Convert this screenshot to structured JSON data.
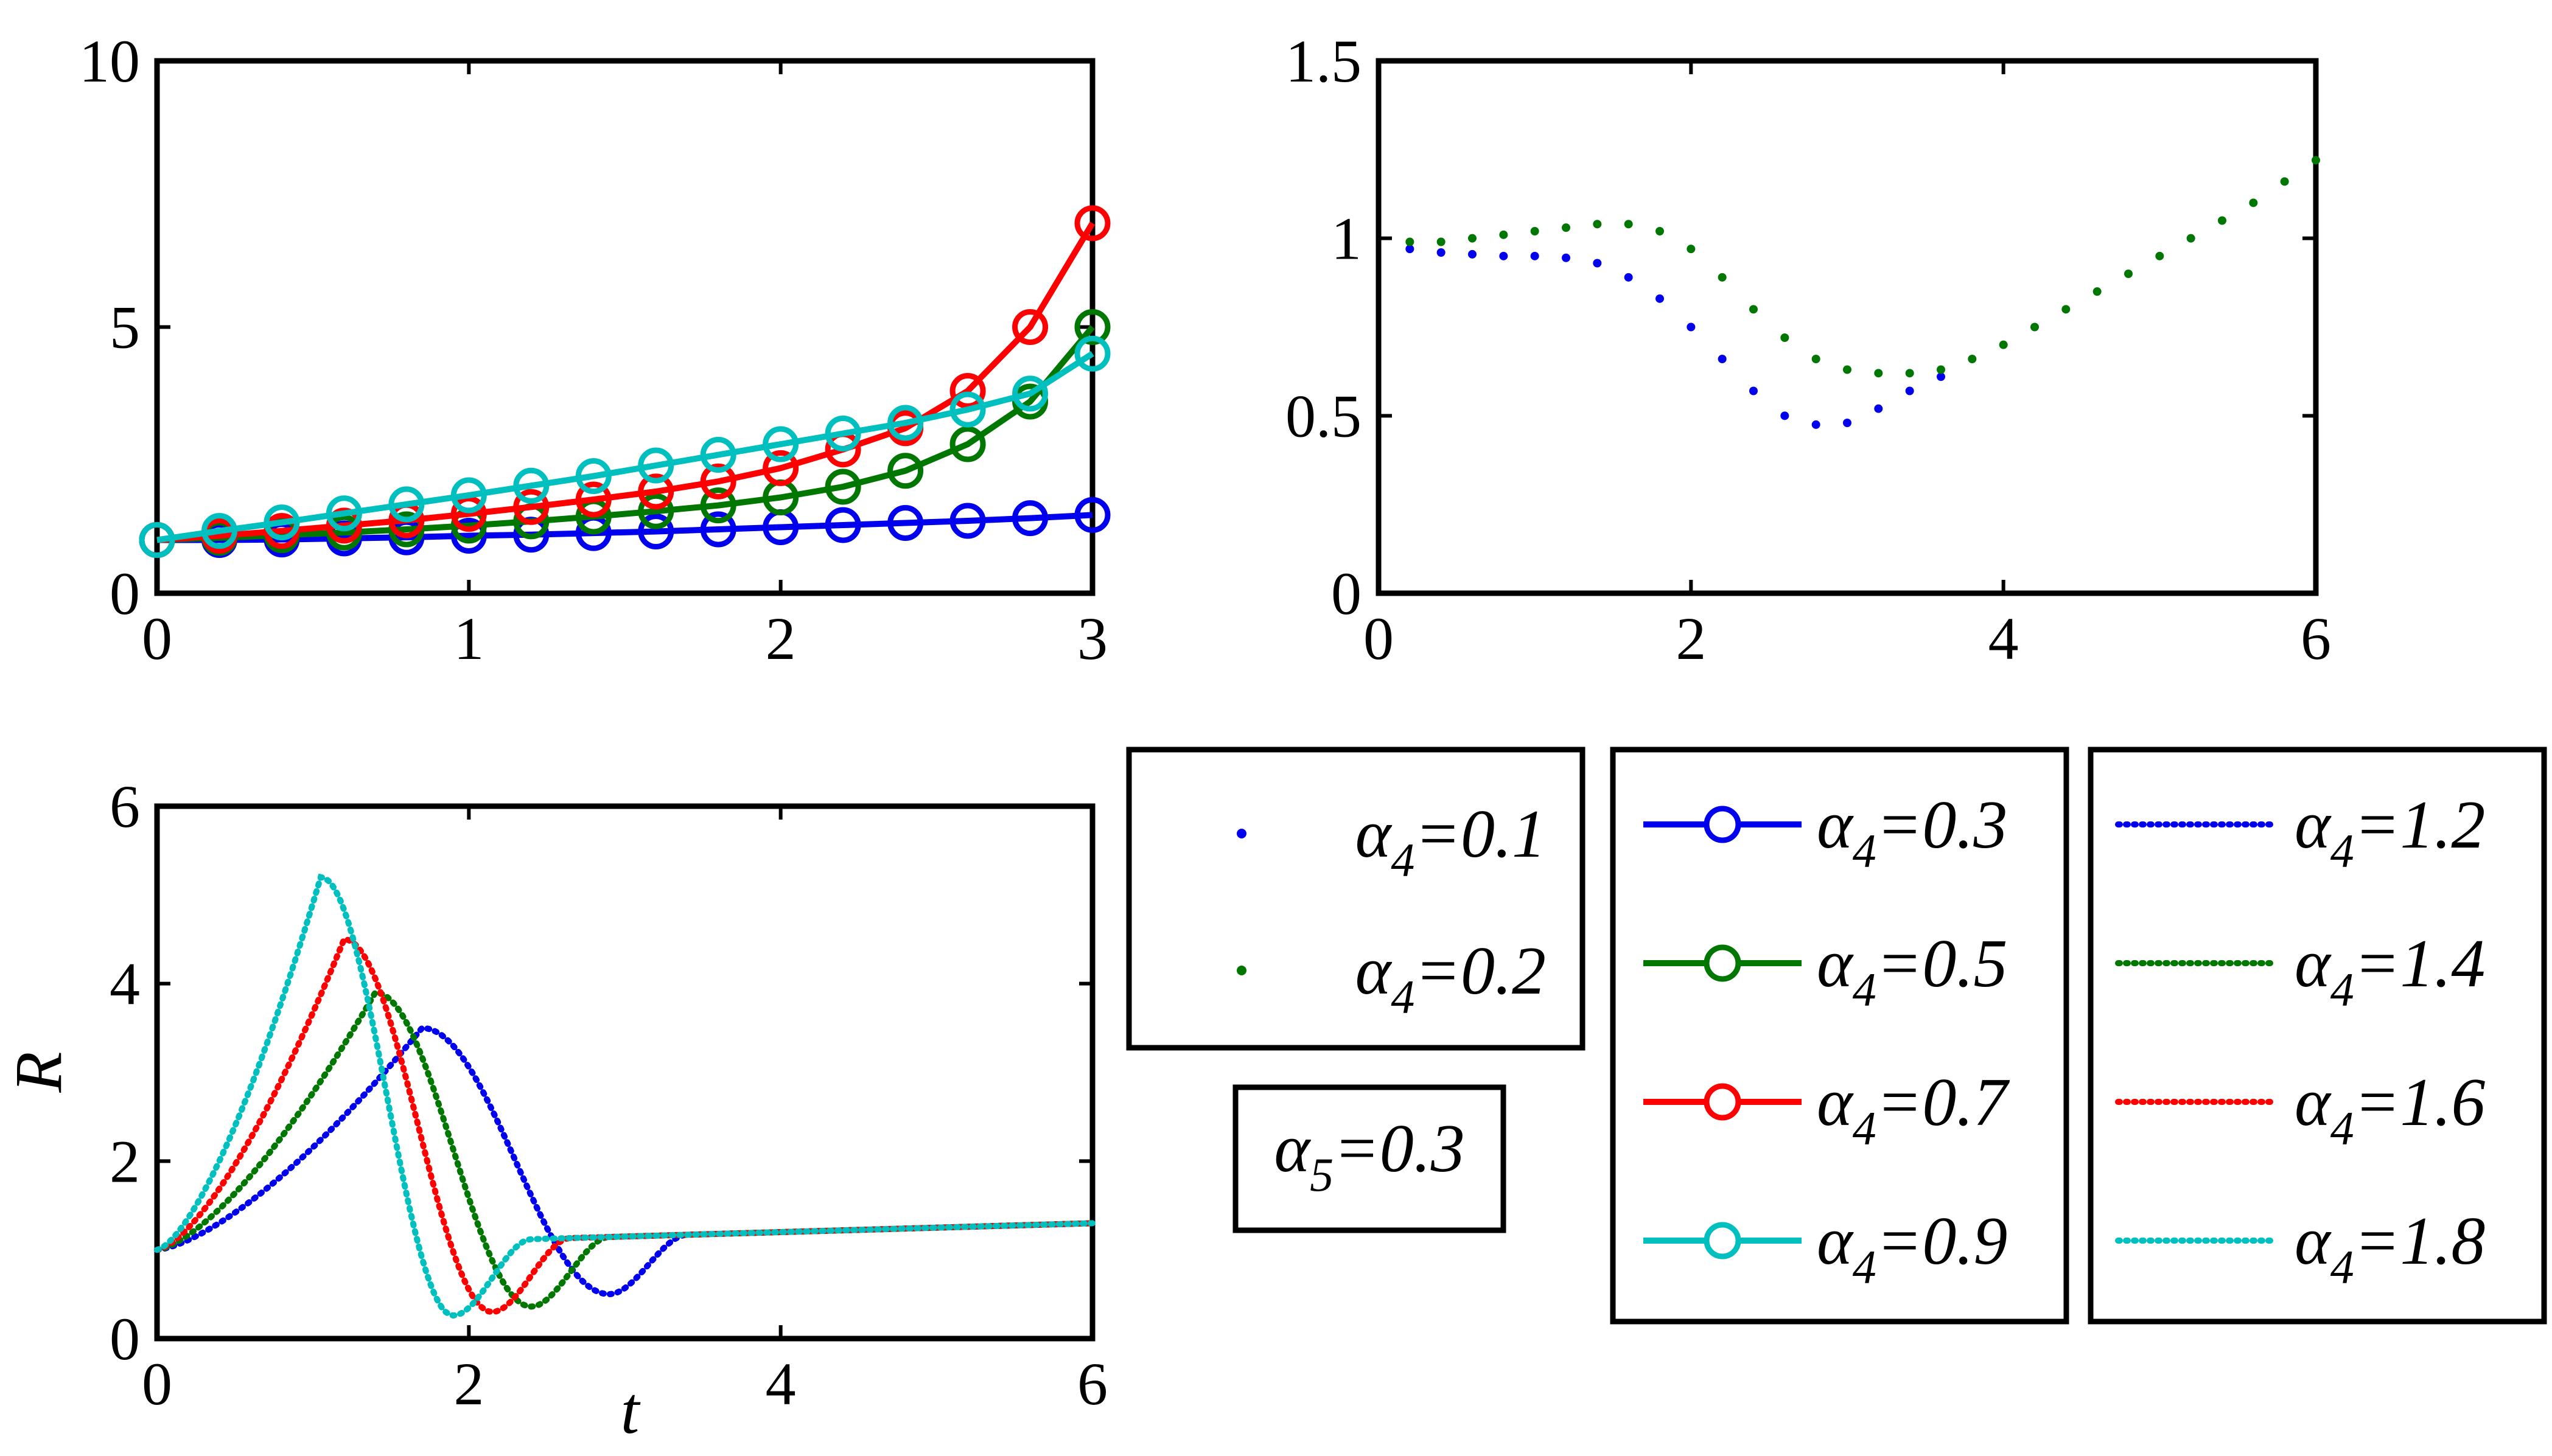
{
  "colors": {
    "blue": "#0000ee",
    "green": "#007700",
    "red": "#ff0000",
    "cyan": "#00bfbf",
    "axis": "#000000"
  },
  "chart_data": [
    {
      "id": "top-left",
      "type": "line",
      "title": "",
      "xlabel": "",
      "ylabel": "",
      "xlim": [
        0,
        3
      ],
      "ylim": [
        0,
        10
      ],
      "xticks": [
        0,
        1,
        2,
        3
      ],
      "yticks": [
        0,
        5,
        10
      ],
      "x": [
        0,
        0.2,
        0.4,
        0.6,
        0.8,
        1.0,
        1.2,
        1.4,
        1.6,
        1.8,
        2.0,
        2.2,
        2.4,
        2.6,
        2.8,
        3.0
      ],
      "series": [
        {
          "name": "α4=0.3",
          "color": "blue",
          "style": "line-circle",
          "values": [
            1.0,
            1.0,
            1.01,
            1.03,
            1.05,
            1.08,
            1.1,
            1.13,
            1.16,
            1.2,
            1.24,
            1.28,
            1.32,
            1.36,
            1.41,
            1.47
          ]
        },
        {
          "name": "α4=0.5",
          "color": "green",
          "style": "line-circle",
          "values": [
            1.0,
            1.04,
            1.09,
            1.14,
            1.2,
            1.27,
            1.35,
            1.44,
            1.54,
            1.65,
            1.8,
            2.0,
            2.3,
            2.8,
            3.6,
            5.0
          ]
        },
        {
          "name": "α4=0.7",
          "color": "red",
          "style": "line-circle",
          "values": [
            1.0,
            1.08,
            1.17,
            1.27,
            1.37,
            1.49,
            1.62,
            1.76,
            1.91,
            2.1,
            2.35,
            2.7,
            3.1,
            3.8,
            5.0,
            6.95
          ]
        },
        {
          "name": "α4=0.9",
          "color": "cyan",
          "style": "line-circle",
          "values": [
            1.0,
            1.17,
            1.33,
            1.5,
            1.67,
            1.84,
            2.02,
            2.2,
            2.4,
            2.6,
            2.8,
            3.0,
            3.2,
            3.45,
            3.75,
            4.5
          ]
        }
      ]
    },
    {
      "id": "top-right",
      "type": "scatter",
      "title": "",
      "xlabel": "",
      "ylabel": "",
      "xlim": [
        0,
        6
      ],
      "ylim": [
        0,
        1.5
      ],
      "xticks": [
        0,
        2,
        4,
        6
      ],
      "yticks": [
        0,
        0.5,
        1,
        1.5
      ],
      "series": [
        {
          "name": "α4=0.1",
          "color": "blue",
          "style": "dot",
          "x": [
            0.2,
            0.4,
            0.6,
            0.8,
            1.0,
            1.2,
            1.4,
            1.6,
            1.8,
            2.0,
            2.2,
            2.4,
            2.6,
            2.8,
            3.0,
            3.2,
            3.4,
            3.6
          ],
          "values": [
            0.97,
            0.96,
            0.955,
            0.95,
            0.95,
            0.945,
            0.93,
            0.89,
            0.83,
            0.75,
            0.66,
            0.57,
            0.5,
            0.475,
            0.48,
            0.52,
            0.57,
            0.61
          ]
        },
        {
          "name": "α4=0.2",
          "color": "green",
          "style": "dot",
          "x": [
            0.2,
            0.4,
            0.6,
            0.8,
            1.0,
            1.2,
            1.4,
            1.6,
            1.8,
            2.0,
            2.2,
            2.4,
            2.6,
            2.8,
            3.0,
            3.2,
            3.4,
            3.6,
            3.8,
            4.0,
            4.2,
            4.4,
            4.6,
            4.8,
            5.0,
            5.2,
            5.4,
            5.6,
            5.8,
            6.0
          ],
          "values": [
            0.99,
            0.99,
            1.0,
            1.01,
            1.02,
            1.03,
            1.04,
            1.04,
            1.02,
            0.97,
            0.89,
            0.8,
            0.72,
            0.66,
            0.63,
            0.62,
            0.62,
            0.63,
            0.66,
            0.7,
            0.75,
            0.8,
            0.85,
            0.9,
            0.95,
            1.0,
            1.05,
            1.1,
            1.16,
            1.22
          ]
        }
      ]
    },
    {
      "id": "bottom-left",
      "type": "line",
      "title": "",
      "xlabel": "t",
      "ylabel": "R",
      "xlim": [
        0,
        6
      ],
      "ylim": [
        0,
        6
      ],
      "xticks": [
        0,
        2,
        4,
        6
      ],
      "yticks": [
        0,
        2,
        4,
        6
      ],
      "baseline": {
        "start": 1.0,
        "end": 1.3
      },
      "series": [
        {
          "name": "α4=1.2",
          "color": "blue",
          "style": "dotted",
          "peak_t": 1.7,
          "peak_R": 3.5,
          "min_t": 2.9,
          "min_R": 0.5
        },
        {
          "name": "α4=1.4",
          "color": "green",
          "style": "dotted",
          "peak_t": 1.4,
          "peak_R": 3.9,
          "min_t": 2.4,
          "min_R": 0.36
        },
        {
          "name": "α4=1.6",
          "color": "red",
          "style": "dotted",
          "peak_t": 1.2,
          "peak_R": 4.5,
          "min_t": 2.15,
          "min_R": 0.3
        },
        {
          "name": "α4=1.8",
          "color": "cyan",
          "style": "dotted",
          "peak_t": 1.05,
          "peak_R": 5.2,
          "min_t": 1.9,
          "min_R": 0.26
        }
      ]
    }
  ],
  "legends": {
    "box1": [
      {
        "base": "α",
        "sub": "4",
        "rest": "=0.1",
        "color": "blue",
        "style": "dot"
      },
      {
        "base": "α",
        "sub": "4",
        "rest": "=0.2",
        "color": "green",
        "style": "dot"
      }
    ],
    "param": {
      "base": "α",
      "sub": "5",
      "rest": "=0.3"
    },
    "box2": [
      {
        "base": "α",
        "sub": "4",
        "rest": "=0.3",
        "color": "blue",
        "style": "line-circle"
      },
      {
        "base": "α",
        "sub": "4",
        "rest": "=0.5",
        "color": "green",
        "style": "line-circle"
      },
      {
        "base": "α",
        "sub": "4",
        "rest": "=0.7",
        "color": "red",
        "style": "line-circle"
      },
      {
        "base": "α",
        "sub": "4",
        "rest": "=0.9",
        "color": "cyan",
        "style": "line-circle"
      }
    ],
    "box3": [
      {
        "base": "α",
        "sub": "4",
        "rest": "=1.2",
        "color": "blue",
        "style": "dotted"
      },
      {
        "base": "α",
        "sub": "4",
        "rest": "=1.4",
        "color": "green",
        "style": "dotted"
      },
      {
        "base": "α",
        "sub": "4",
        "rest": "=1.6",
        "color": "red",
        "style": "dotted"
      },
      {
        "base": "α",
        "sub": "4",
        "rest": "=1.8",
        "color": "cyan",
        "style": "dotted"
      }
    ]
  }
}
